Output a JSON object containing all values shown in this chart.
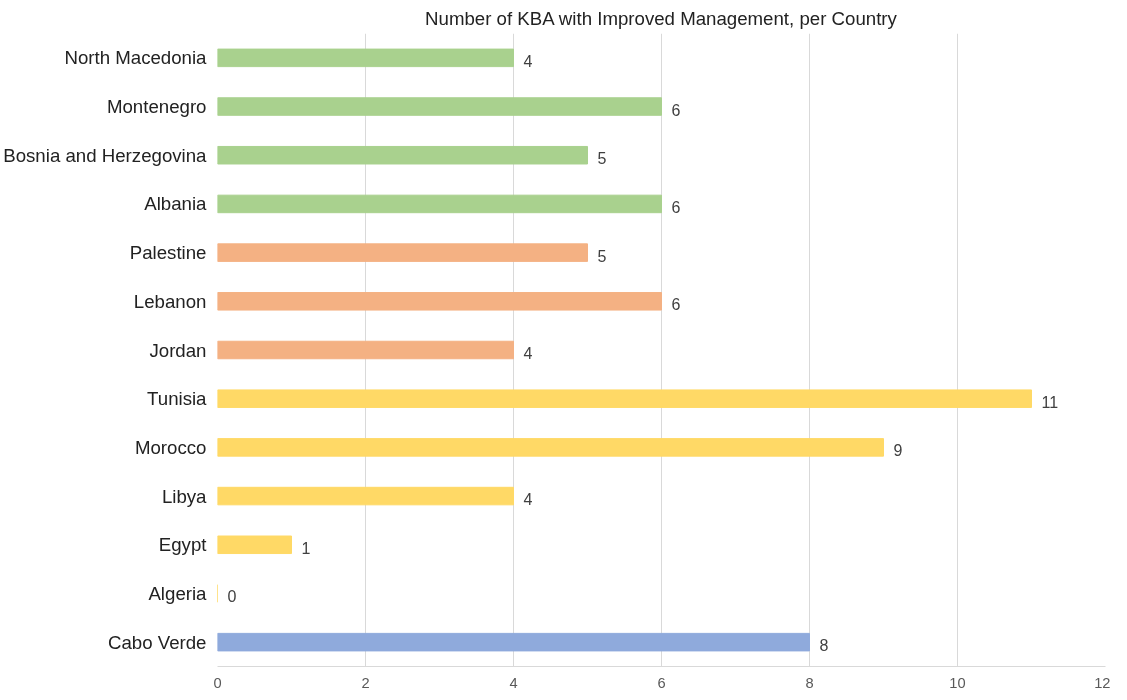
{
  "chart_data": {
    "type": "bar",
    "orientation": "horizontal",
    "title": "Number of KBA with Improved Management, per Country",
    "categories": [
      "North Macedonia",
      "Montenegro",
      "Bosnia and Herzegovina",
      "Albania",
      "Palestine",
      "Lebanon",
      "Jordan",
      "Tunisia",
      "Morocco",
      "Libya",
      "Egypt",
      "Algeria",
      "Cabo Verde"
    ],
    "values": [
      4,
      6,
      5,
      6,
      5,
      6,
      4,
      11,
      9,
      4,
      1,
      0,
      8
    ],
    "colors": [
      "#a9d18e",
      "#a9d18e",
      "#a9d18e",
      "#a9d18e",
      "#f4b183",
      "#f4b183",
      "#f4b183",
      "#ffd966",
      "#ffd966",
      "#ffd966",
      "#ffd966",
      "#ffd966",
      "#8faadc"
    ],
    "xlim": [
      0,
      12
    ],
    "xticks": [
      0,
      2,
      4,
      6,
      8,
      10,
      12
    ],
    "grid": "x",
    "data_labels": true
  }
}
